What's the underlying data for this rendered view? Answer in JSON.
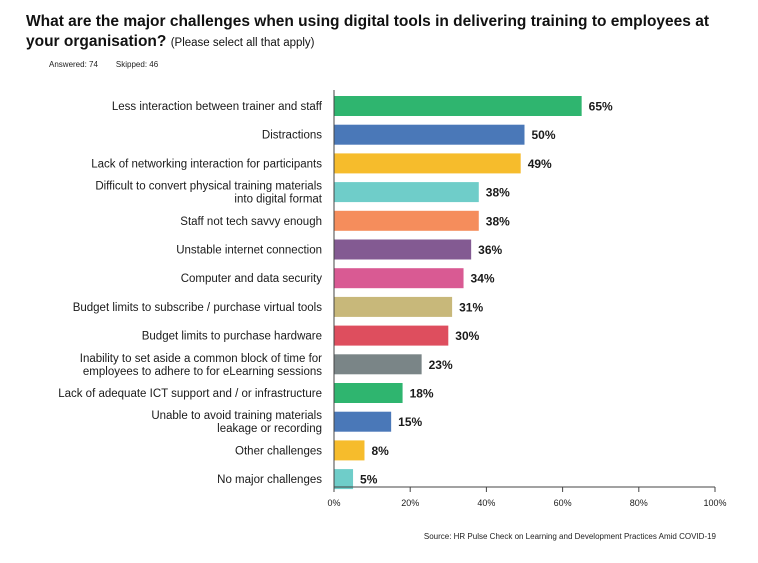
{
  "title": "What are the major challenges when using digital tools in delivering training to employees at your organisation?",
  "title_note": "(Please select all that apply)",
  "answered_label": "Answered: 74",
  "skipped_label": "Skipped: 46",
  "source": "Source: HR Pulse Check on Learning and Development Practices Amid COVID-19",
  "chart_data": {
    "type": "bar",
    "orientation": "horizontal",
    "categories": [
      [
        "Less interaction between trainer and staff"
      ],
      [
        "Distractions"
      ],
      [
        "Lack of networking interaction for participants"
      ],
      [
        "Difficult to convert physical training materials",
        "into digital format"
      ],
      [
        "Staff not tech savvy enough"
      ],
      [
        "Unstable internet connection"
      ],
      [
        "Computer and data security"
      ],
      [
        "Budget limits to subscribe / purchase virtual tools"
      ],
      [
        "Budget limits to purchase hardware"
      ],
      [
        "Inability to set aside a common block of time for",
        "employees to adhere to for eLearning sessions"
      ],
      [
        "Lack of adequate ICT support and / or infrastructure"
      ],
      [
        "Unable to avoid training materials",
        "leakage or recording"
      ],
      [
        "Other challenges"
      ],
      [
        "No major challenges"
      ]
    ],
    "values": [
      65,
      50,
      49,
      38,
      38,
      36,
      34,
      31,
      30,
      23,
      18,
      15,
      8,
      5
    ],
    "value_labels": [
      "65%",
      "50%",
      "49%",
      "38%",
      "38%",
      "36%",
      "34%",
      "31%",
      "30%",
      "23%",
      "18%",
      "15%",
      "8%",
      "5%"
    ],
    "colors": [
      "#2fb56f",
      "#4a78b8",
      "#f6bc2c",
      "#6fcdc9",
      "#f58d5c",
      "#835a92",
      "#d95a93",
      "#c8b87a",
      "#de4e5e",
      "#7a8587",
      "#2fb56f",
      "#4a78b8",
      "#f6bc2c",
      "#6fcdc9"
    ],
    "xlim": [
      0,
      100
    ],
    "xticks": [
      "0%",
      "20%",
      "40%",
      "60%",
      "80%",
      "100%"
    ],
    "xtick_values": [
      0,
      20,
      40,
      60,
      80,
      100
    ]
  }
}
